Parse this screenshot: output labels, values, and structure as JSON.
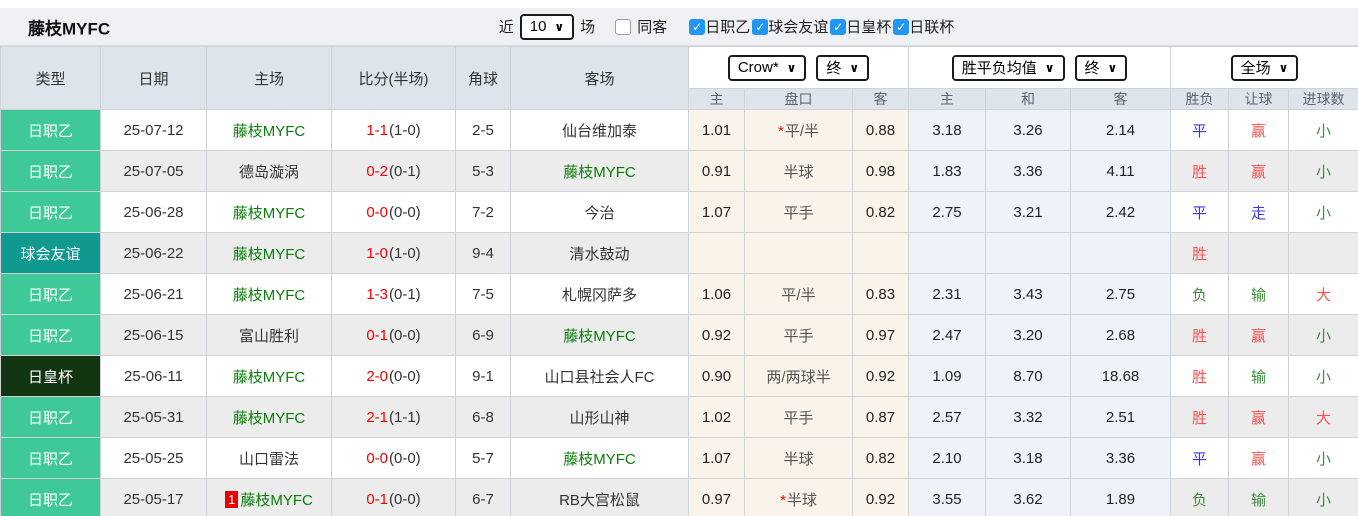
{
  "page": {
    "title": "藤枝MYFC"
  },
  "filter": {
    "near_label": "近",
    "near_value": "10",
    "games_label": "场",
    "same_away_label": "同客",
    "same_away_checked": false,
    "leagues": [
      {
        "label": "日职乙",
        "checked": true
      },
      {
        "label": "球会友谊",
        "checked": true
      },
      {
        "label": "日皇杯",
        "checked": true
      },
      {
        "label": "日联杯",
        "checked": true
      }
    ]
  },
  "colors": {
    "league_bg": "#3fc998",
    "friendly_bg": "#0f998f",
    "cup_bg": "#123411",
    "checkbox_blue": "#2196f3",
    "score_red": "#f20000",
    "team_green": "#0a7d0a",
    "result_red": "#f75353",
    "result_green": "#3e8c3e",
    "result_blue": "#3838e8",
    "odds_cream_bg": "#faf3e9",
    "avg_blue_bg": "#edf3f9",
    "header_bg": "#dde4ec"
  },
  "table": {
    "columns": {
      "type": "类型",
      "date": "日期",
      "home": "主场",
      "score": "比分(半场)",
      "corner": "角球",
      "away": "客场"
    },
    "groups": {
      "crow": {
        "select1": "Crow*",
        "select2": "终",
        "sub": [
          "主",
          "盘口",
          "客"
        ]
      },
      "avg": {
        "select1": "胜平负均值",
        "select2": "终",
        "sub": [
          "主",
          "和",
          "客"
        ]
      },
      "full": {
        "select1": "全场",
        "sub": [
          "胜负",
          "让球",
          "进球数"
        ]
      }
    },
    "rows": [
      {
        "type": "日职乙",
        "type_style": "league",
        "date": "25-07-12",
        "home": "藤枝MYFC",
        "home_green": true,
        "home_badge": "",
        "score_ft": "1-1",
        "score_ht": "(1-0)",
        "corner": "2-5",
        "away": "仙台维加泰",
        "away_green": false,
        "crow_home": "1.01",
        "handicap": "平/半",
        "handicap_star": true,
        "crow_away": "0.88",
        "avg_home": "3.18",
        "avg_draw": "3.26",
        "avg_away": "2.14",
        "result": "平",
        "result_c": "b",
        "letgoal": "赢",
        "letgoal_c": "r",
        "goals": "小",
        "goals_c": "g"
      },
      {
        "type": "日职乙",
        "type_style": "league",
        "date": "25-07-05",
        "home": "德岛漩涡",
        "home_green": false,
        "home_badge": "",
        "score_ft": "0-2",
        "score_ht": "(0-1)",
        "corner": "5-3",
        "away": "藤枝MYFC",
        "away_green": true,
        "crow_home": "0.91",
        "handicap": "半球",
        "handicap_star": false,
        "crow_away": "0.98",
        "avg_home": "1.83",
        "avg_draw": "3.36",
        "avg_away": "4.11",
        "result": "胜",
        "result_c": "r",
        "letgoal": "赢",
        "letgoal_c": "r",
        "goals": "小",
        "goals_c": "g"
      },
      {
        "type": "日职乙",
        "type_style": "league",
        "date": "25-06-28",
        "home": "藤枝MYFC",
        "home_green": true,
        "home_badge": "",
        "score_ft": "0-0",
        "score_ht": "(0-0)",
        "corner": "7-2",
        "away": "今治",
        "away_green": false,
        "crow_home": "1.07",
        "handicap": "平手",
        "handicap_star": false,
        "crow_away": "0.82",
        "avg_home": "2.75",
        "avg_draw": "3.21",
        "avg_away": "2.42",
        "result": "平",
        "result_c": "b",
        "letgoal": "走",
        "letgoal_c": "b",
        "goals": "小",
        "goals_c": "g"
      },
      {
        "type": "球会友谊",
        "type_style": "friendly",
        "date": "25-06-22",
        "home": "藤枝MYFC",
        "home_green": true,
        "home_badge": "",
        "score_ft": "1-0",
        "score_ht": "(1-0)",
        "corner": "9-4",
        "away": "清水鼓动",
        "away_green": false,
        "crow_home": "",
        "handicap": "",
        "handicap_star": false,
        "crow_away": "",
        "avg_home": "",
        "avg_draw": "",
        "avg_away": "",
        "result": "胜",
        "result_c": "r",
        "letgoal": "",
        "letgoal_c": "",
        "goals": "",
        "goals_c": ""
      },
      {
        "type": "日职乙",
        "type_style": "league",
        "date": "25-06-21",
        "home": "藤枝MYFC",
        "home_green": true,
        "home_badge": "",
        "score_ft": "1-3",
        "score_ht": "(0-1)",
        "corner": "7-5",
        "away": "札幌冈萨多",
        "away_green": false,
        "crow_home": "1.06",
        "handicap": "平/半",
        "handicap_star": false,
        "crow_away": "0.83",
        "avg_home": "2.31",
        "avg_draw": "3.43",
        "avg_away": "2.75",
        "result": "负",
        "result_c": "g",
        "letgoal": "输",
        "letgoal_c": "g",
        "goals": "大",
        "goals_c": "r"
      },
      {
        "type": "日职乙",
        "type_style": "league",
        "date": "25-06-15",
        "home": "富山胜利",
        "home_green": false,
        "home_badge": "",
        "score_ft": "0-1",
        "score_ht": "(0-0)",
        "corner": "6-9",
        "away": "藤枝MYFC",
        "away_green": true,
        "crow_home": "0.92",
        "handicap": "平手",
        "handicap_star": false,
        "crow_away": "0.97",
        "avg_home": "2.47",
        "avg_draw": "3.20",
        "avg_away": "2.68",
        "result": "胜",
        "result_c": "r",
        "letgoal": "赢",
        "letgoal_c": "r",
        "goals": "小",
        "goals_c": "g"
      },
      {
        "type": "日皇杯",
        "type_style": "cup",
        "date": "25-06-11",
        "home": "藤枝MYFC",
        "home_green": true,
        "home_badge": "",
        "score_ft": "2-0",
        "score_ht": "(0-0)",
        "corner": "9-1",
        "away": "山口县社会人FC",
        "away_green": false,
        "crow_home": "0.90",
        "handicap": "两/两球半",
        "handicap_star": false,
        "crow_away": "0.92",
        "avg_home": "1.09",
        "avg_draw": "8.70",
        "avg_away": "18.68",
        "result": "胜",
        "result_c": "r",
        "letgoal": "输",
        "letgoal_c": "g",
        "goals": "小",
        "goals_c": "g"
      },
      {
        "type": "日职乙",
        "type_style": "league",
        "date": "25-05-31",
        "home": "藤枝MYFC",
        "home_green": true,
        "home_badge": "",
        "score_ft": "2-1",
        "score_ht": "(1-1)",
        "corner": "6-8",
        "away": "山形山神",
        "away_green": false,
        "crow_home": "1.02",
        "handicap": "平手",
        "handicap_star": false,
        "crow_away": "0.87",
        "avg_home": "2.57",
        "avg_draw": "3.32",
        "avg_away": "2.51",
        "result": "胜",
        "result_c": "r",
        "letgoal": "赢",
        "letgoal_c": "r",
        "goals": "大",
        "goals_c": "r"
      },
      {
        "type": "日职乙",
        "type_style": "league",
        "date": "25-05-25",
        "home": "山口雷法",
        "home_green": false,
        "home_badge": "",
        "score_ft": "0-0",
        "score_ht": "(0-0)",
        "corner": "5-7",
        "away": "藤枝MYFC",
        "away_green": true,
        "crow_home": "1.07",
        "handicap": "半球",
        "handicap_star": false,
        "crow_away": "0.82",
        "avg_home": "2.10",
        "avg_draw": "3.18",
        "avg_away": "3.36",
        "result": "平",
        "result_c": "b",
        "letgoal": "赢",
        "letgoal_c": "r",
        "goals": "小",
        "goals_c": "g"
      },
      {
        "type": "日职乙",
        "type_style": "league",
        "date": "25-05-17",
        "home": "藤枝MYFC",
        "home_green": true,
        "home_badge": "1",
        "score_ft": "0-1",
        "score_ht": "(0-0)",
        "corner": "6-7",
        "away": "RB大宫松鼠",
        "away_green": false,
        "crow_home": "0.97",
        "handicap": "半球",
        "handicap_star": true,
        "crow_away": "0.92",
        "avg_home": "3.55",
        "avg_draw": "3.62",
        "avg_away": "1.89",
        "result": "负",
        "result_c": "g",
        "letgoal": "输",
        "letgoal_c": "g",
        "goals": "小",
        "goals_c": "g"
      }
    ]
  }
}
